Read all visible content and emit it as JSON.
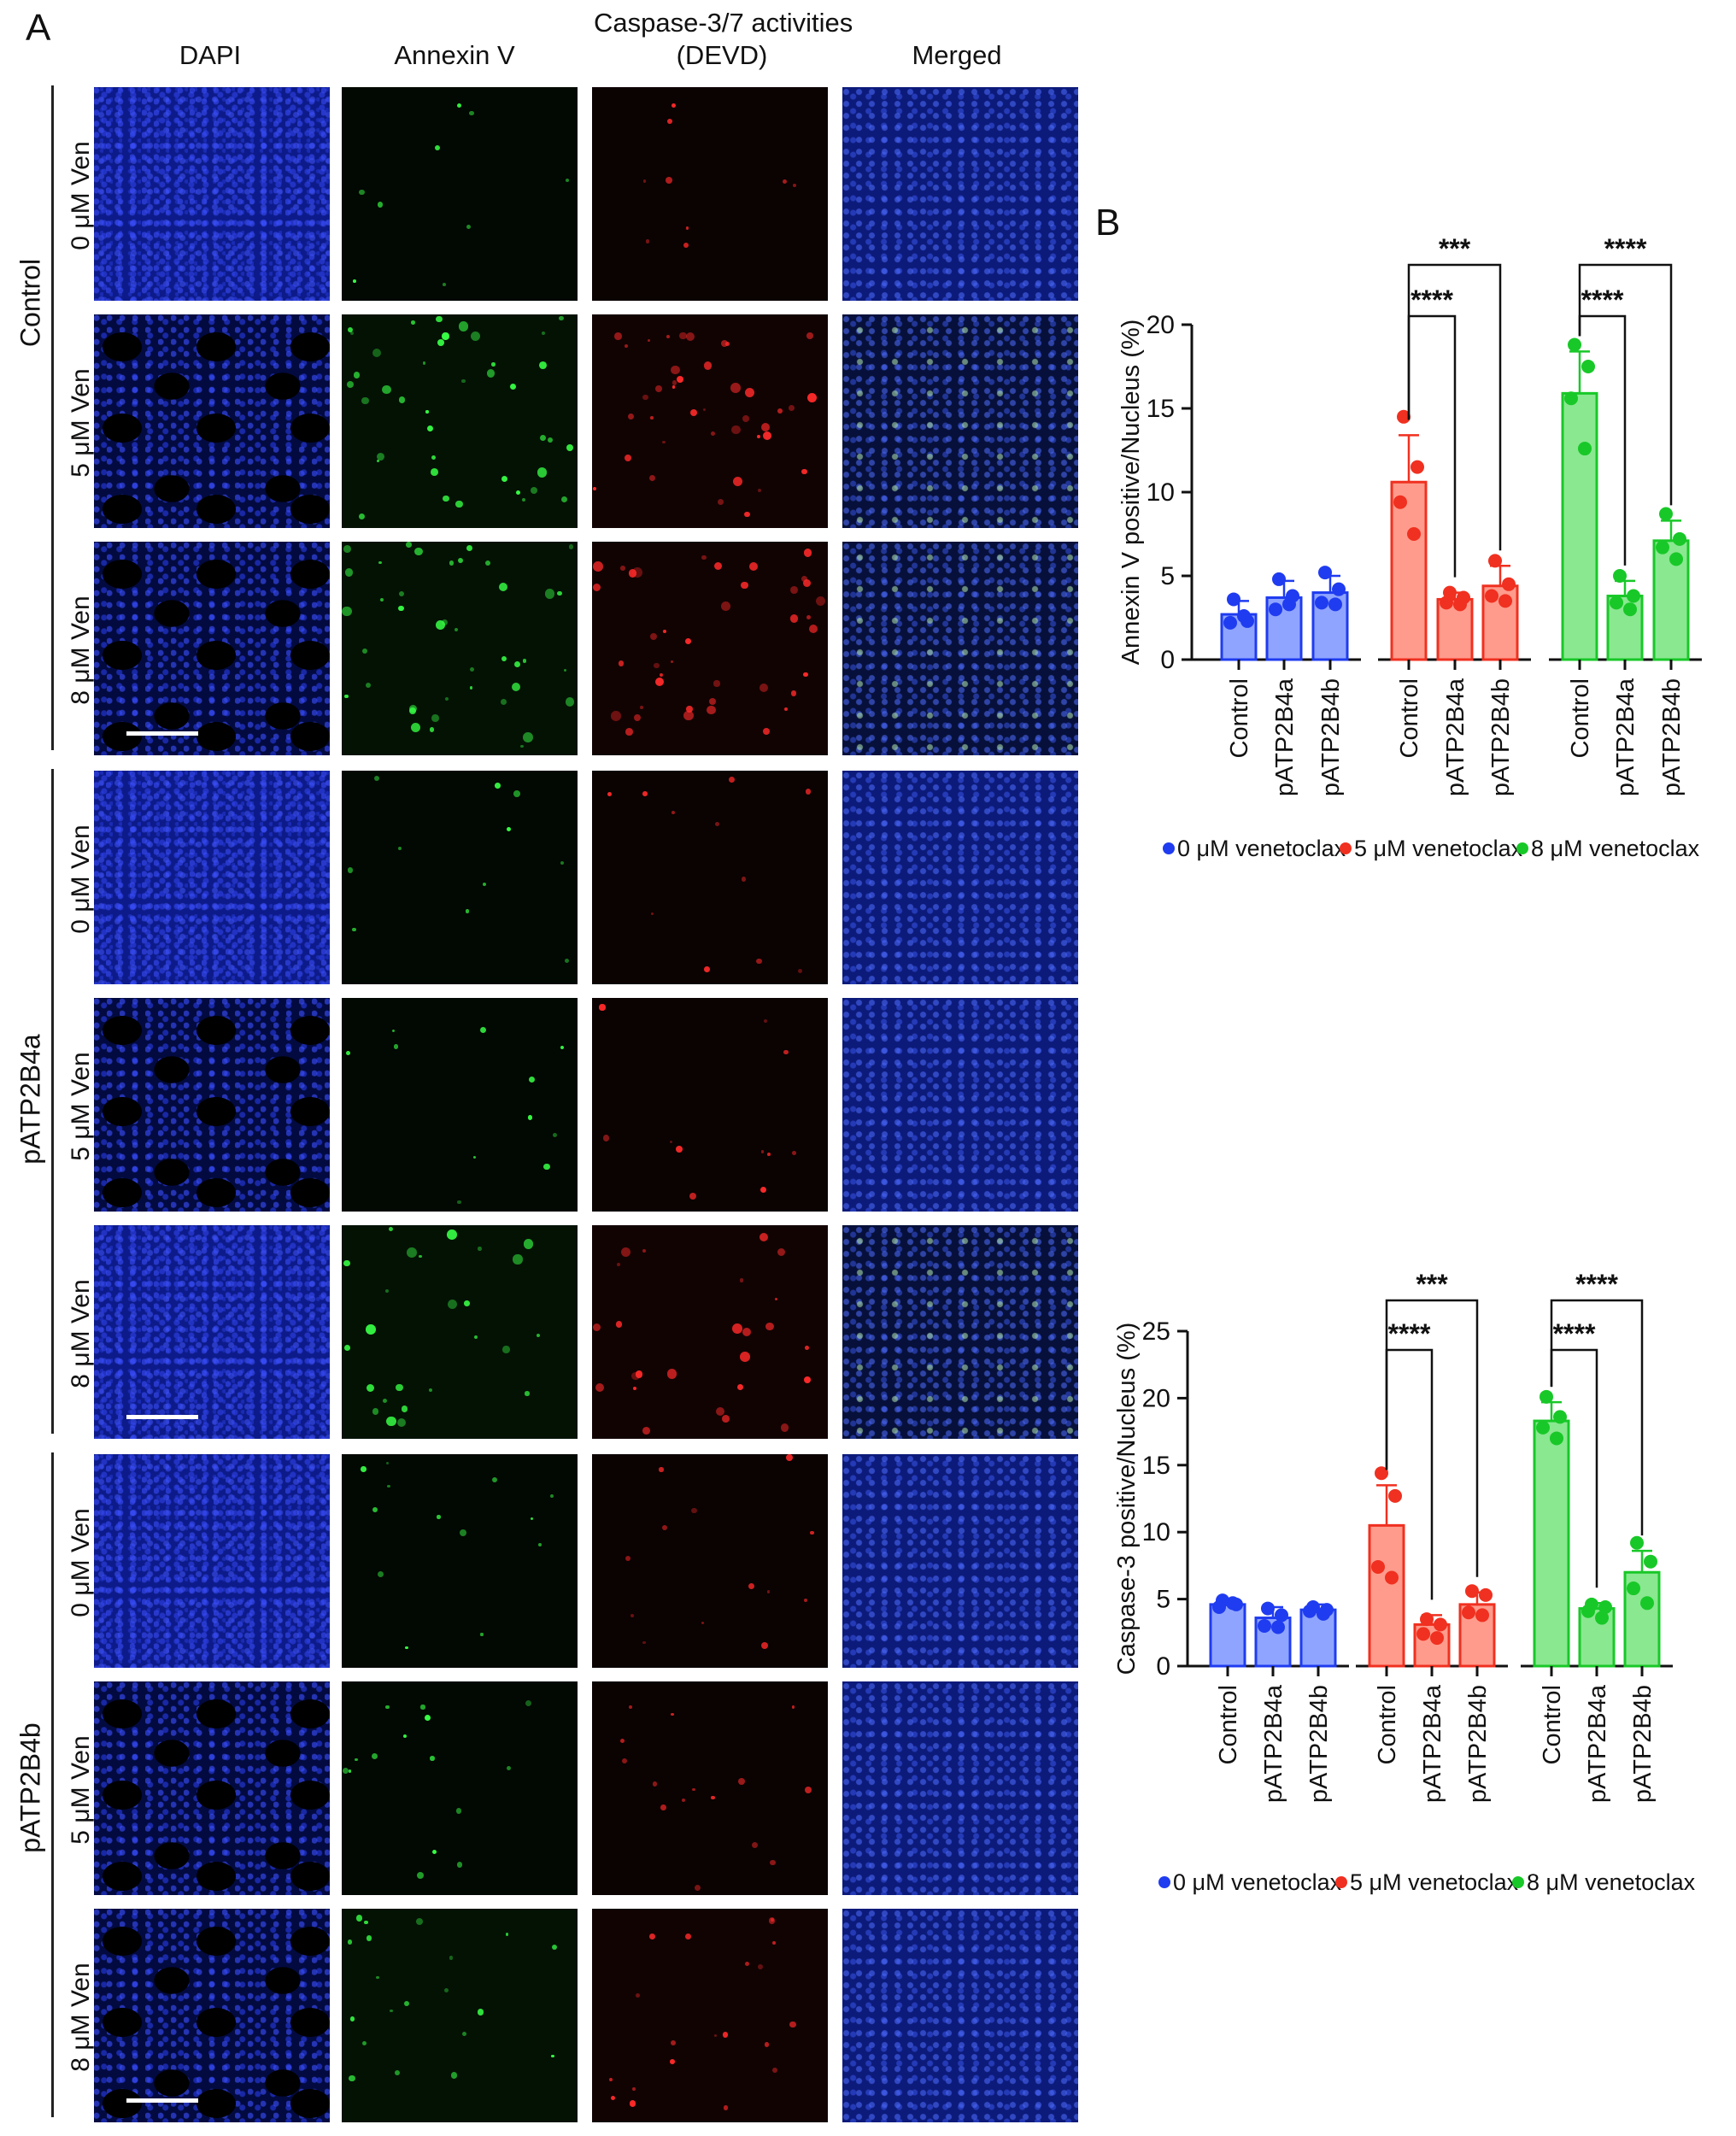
{
  "panel_a": {
    "letter": "A",
    "columns": [
      "DAPI",
      "Annexin V",
      "Caspase-3/7 activities\n(DEVD)",
      "Merged"
    ],
    "groups": [
      {
        "label": "Control",
        "rows": [
          "0 μM Ven",
          "5 μM Ven",
          "8 μM Ven"
        ]
      },
      {
        "label": "pATP2B4a",
        "rows": [
          "0 μM Ven",
          "5 μM Ven",
          "8 μM Ven"
        ]
      },
      {
        "label": "pATP2B4b",
        "rows": [
          "0 μM Ven",
          "5 μM Ven",
          "8 μM Ven"
        ]
      }
    ],
    "colors": {
      "dapi": "#0d1b8a",
      "annexin": "#37ff45",
      "devd": "#ff2a2a"
    }
  },
  "panel_b": {
    "letter": "B"
  },
  "chart_data": [
    {
      "type": "bar",
      "ylabel": "Annexin V positive/Nucleus (%)",
      "ylim": [
        0,
        20
      ],
      "yticks": [
        0,
        5,
        10,
        15,
        20
      ],
      "categories": [
        "Control",
        "pATP2B4a",
        "pATP2B4b",
        "Control",
        "pATP2B4a",
        "pATP2B4b",
        "Control",
        "pATP2B4a",
        "pATP2B4b"
      ],
      "bar_group": [
        0,
        0,
        0,
        1,
        1,
        1,
        2,
        2,
        2
      ],
      "values": [
        2.7,
        3.7,
        4.0,
        10.6,
        3.6,
        4.4,
        15.9,
        3.8,
        7.1
      ],
      "errors": [
        0.8,
        1.0,
        1.0,
        2.8,
        0.4,
        1.2,
        2.5,
        0.9,
        1.2
      ],
      "points": [
        [
          3.6,
          2.3,
          2.2,
          2.6
        ],
        [
          4.8,
          3.8,
          3.0,
          3.3
        ],
        [
          5.2,
          4.2,
          3.4,
          3.3
        ],
        [
          14.5,
          11.5,
          9.4,
          7.5
        ],
        [
          4.0,
          3.7,
          3.4,
          3.3
        ],
        [
          5.9,
          4.5,
          3.8,
          3.5
        ],
        [
          18.8,
          17.5,
          15.6,
          12.6
        ],
        [
          5.0,
          3.8,
          3.4,
          3.0
        ],
        [
          8.7,
          7.2,
          6.7,
          6.0
        ]
      ],
      "series": [
        {
          "name": "0 μM venetoclax",
          "color": "#1f3cf0"
        },
        {
          "name": "5 μM venetoclax",
          "color": "#f03020"
        },
        {
          "name": "8 μM venetoclax",
          "color": "#18c828"
        }
      ],
      "annotations": [
        {
          "group": 1,
          "from": 0,
          "to": 1,
          "text": "****"
        },
        {
          "group": 1,
          "from": 0,
          "to": 2,
          "text": "***"
        },
        {
          "group": 2,
          "from": 0,
          "to": 1,
          "text": "****"
        },
        {
          "group": 2,
          "from": 0,
          "to": 2,
          "text": "****"
        }
      ]
    },
    {
      "type": "bar",
      "ylabel": "Caspase-3 positive/Nucleus (%)",
      "ylim": [
        0,
        25
      ],
      "yticks": [
        0,
        5,
        10,
        15,
        20,
        25
      ],
      "categories": [
        "Control",
        "pATP2B4a",
        "pATP2B4b",
        "Control",
        "pATP2B4a",
        "pATP2B4b",
        "Control",
        "pATP2B4a",
        "pATP2B4b"
      ],
      "bar_group": [
        0,
        0,
        0,
        1,
        1,
        1,
        2,
        2,
        2
      ],
      "values": [
        4.6,
        3.6,
        4.2,
        10.5,
        3.1,
        4.6,
        18.3,
        4.3,
        7.0
      ],
      "errors": [
        0.3,
        0.8,
        0.4,
        3.0,
        0.7,
        0.9,
        1.4,
        0.4,
        1.6
      ],
      "points": [
        [
          4.9,
          4.6,
          4.4,
          4.7
        ],
        [
          4.3,
          3.8,
          3.0,
          2.9
        ],
        [
          4.4,
          4.2,
          4.1,
          3.9
        ],
        [
          14.4,
          12.7,
          7.4,
          6.6
        ],
        [
          3.5,
          3.1,
          2.4,
          2.1
        ],
        [
          5.6,
          5.3,
          4.0,
          3.8
        ],
        [
          20.1,
          18.6,
          17.8,
          17.0
        ],
        [
          4.6,
          4.4,
          4.1,
          3.6
        ],
        [
          9.2,
          7.8,
          5.8,
          4.7
        ]
      ],
      "series": [
        {
          "name": "0 μM venetoclax",
          "color": "#1f3cf0"
        },
        {
          "name": "5 μM venetoclax",
          "color": "#f03020"
        },
        {
          "name": "8 μM venetoclax",
          "color": "#18c828"
        }
      ],
      "annotations": [
        {
          "group": 1,
          "from": 0,
          "to": 1,
          "text": "****"
        },
        {
          "group": 1,
          "from": 0,
          "to": 2,
          "text": "***"
        },
        {
          "group": 2,
          "from": 0,
          "to": 1,
          "text": "****"
        },
        {
          "group": 2,
          "from": 0,
          "to": 2,
          "text": "****"
        }
      ]
    }
  ]
}
